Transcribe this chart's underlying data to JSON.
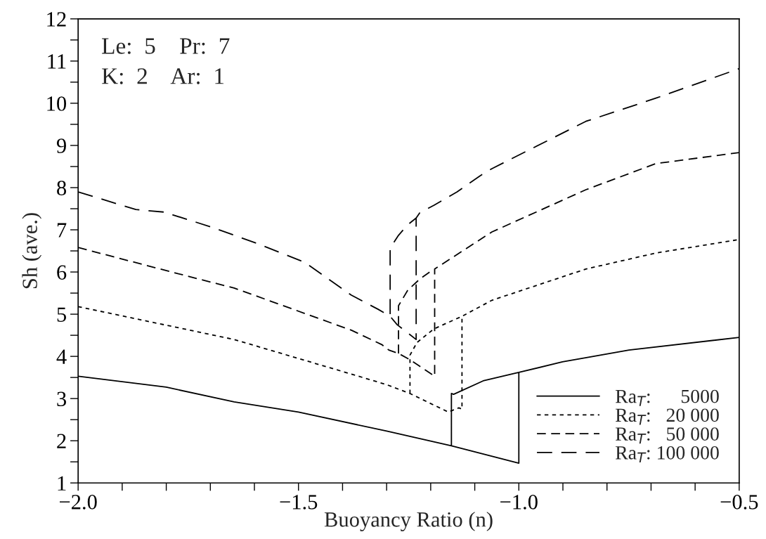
{
  "chart_data": {
    "type": "line",
    "xlabel": "Buoyancy Ratio (n)",
    "ylabel": "Sh (ave.)",
    "annotations": [
      "Le:  5    Pr:  7",
      "K:  2    Ar:  1"
    ],
    "xlim": [
      -2.0,
      -0.5
    ],
    "ylim": [
      1,
      12
    ],
    "xticks": [
      {
        "value": -2.0,
        "label": "−2.0"
      },
      {
        "value": -1.9,
        "label": null
      },
      {
        "value": -1.8,
        "label": null
      },
      {
        "value": -1.7,
        "label": null
      },
      {
        "value": -1.6,
        "label": null
      },
      {
        "value": -1.5,
        "label": "−1.5"
      },
      {
        "value": -1.4,
        "label": null
      },
      {
        "value": -1.3,
        "label": null
      },
      {
        "value": -1.2,
        "label": null
      },
      {
        "value": -1.1,
        "label": null
      },
      {
        "value": -1.0,
        "label": "−1.0"
      },
      {
        "value": -0.9,
        "label": null
      },
      {
        "value": -0.8,
        "label": null
      },
      {
        "value": -0.7,
        "label": null
      },
      {
        "value": -0.6,
        "label": null
      },
      {
        "value": -0.5,
        "label": "−0.5"
      }
    ],
    "yticks": [
      1,
      {
        "value": 1.5,
        "label": null
      },
      2,
      {
        "value": 2.5,
        "label": null
      },
      3,
      {
        "value": 3.5,
        "label": null
      },
      4,
      {
        "value": 4.5,
        "label": null
      },
      5,
      {
        "value": 5.5,
        "label": null
      },
      6,
      {
        "value": 6.5,
        "label": null
      },
      7,
      {
        "value": 7.5,
        "label": null
      },
      8,
      {
        "value": 8.5,
        "label": null
      },
      9,
      {
        "value": 9.5,
        "label": null
      },
      10,
      {
        "value": 10.5,
        "label": null
      },
      11,
      {
        "value": 11.5,
        "label": null
      },
      12
    ],
    "grid": false,
    "legend": "bottom right",
    "series": [
      {
        "name": "Ra$_{T}$:      5000",
        "color": "#000000",
        "line_style": "solid",
        "x": [
          -2.0,
          -1.8,
          -1.646,
          -1.5,
          -1.3,
          -1.153,
          -1.0,
          -1.0,
          -0.901,
          -0.75,
          -0.5,
          null,
          -1.153,
          -1.153,
          -1.148,
          -1.081,
          -1.0
        ],
        "values": [
          3.53,
          3.27,
          2.92,
          2.68,
          2.23,
          1.88,
          1.47,
          3.62,
          3.87,
          4.15,
          4.45,
          null,
          1.88,
          3.12,
          3.1,
          3.42,
          3.62
        ]
      },
      {
        "name": "Ra$_{T}$:   20 000",
        "color": "#000000",
        "line_style": "dotted",
        "x": [
          -2.0,
          -1.646,
          -1.38,
          -1.3,
          -1.247,
          -1.16,
          -1.136,
          -1.129,
          -1.129,
          -1.061,
          -0.848,
          -0.689,
          -0.5,
          null,
          -1.247,
          -1.247,
          -1.231,
          -1.193,
          -1.129
        ],
        "values": [
          5.18,
          4.4,
          3.58,
          3.33,
          3.12,
          2.68,
          2.78,
          2.75,
          4.95,
          5.33,
          6.07,
          6.45,
          6.77,
          null,
          3.12,
          4.03,
          4.33,
          4.65,
          4.95
        ]
      },
      {
        "name": "Ra$_{T}$:   50 000",
        "color": "#000000",
        "line_style": "dashed",
        "x": [
          -2.0,
          -1.751,
          -1.646,
          -1.38,
          -1.311,
          -1.295,
          -1.273,
          -1.247,
          -1.191,
          -1.191,
          -1.061,
          -0.848,
          -0.689,
          -0.5,
          null,
          -1.273,
          -1.273,
          -1.252,
          -1.225,
          -1.193
        ],
        "values": [
          6.58,
          5.9,
          5.62,
          4.62,
          4.28,
          4.15,
          4.07,
          3.92,
          3.53,
          6.07,
          6.95,
          7.95,
          8.57,
          8.83,
          null,
          4.07,
          5.2,
          5.57,
          5.83,
          6.07
        ]
      },
      {
        "name": "Ra$_{T}$: 100 000",
        "color": "#000000",
        "line_style": "dashed",
        "x": [
          -2.0,
          -1.869,
          -1.805,
          -1.699,
          -1.592,
          -1.486,
          -1.38,
          -1.32,
          -1.292,
          -1.276,
          -1.233,
          -1.233,
          -1.225,
          -1.193,
          -1.14,
          -1.088,
          -1.061,
          -0.848,
          -0.689,
          -0.5,
          null,
          -1.292,
          -1.292,
          -1.273,
          -1.252,
          -1.233
        ],
        "values": [
          7.9,
          7.48,
          7.42,
          7.07,
          6.67,
          6.23,
          5.45,
          5.12,
          4.95,
          4.75,
          4.4,
          7.28,
          7.4,
          7.58,
          7.9,
          8.28,
          8.45,
          9.57,
          10.12,
          10.82,
          null,
          5.0,
          6.57,
          6.87,
          7.12,
          7.28
        ]
      }
    ]
  }
}
